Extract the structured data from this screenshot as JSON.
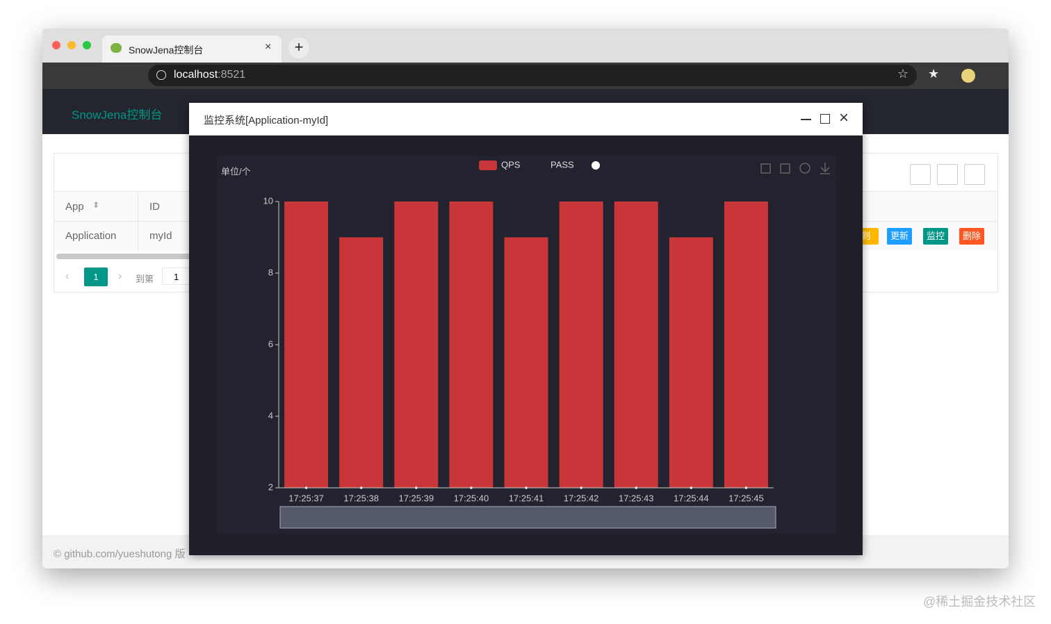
{
  "browser": {
    "tab_title": "SnowJena控制台",
    "url_host": "localhost",
    "url_port": ":8521"
  },
  "app": {
    "brand": "SnowJena控制台",
    "table": {
      "headers": [
        "App",
        "ID"
      ],
      "rows": [
        [
          "Application",
          "myId"
        ]
      ]
    },
    "pagination": {
      "page": "1",
      "goto_label": "到第",
      "goto_value": "1"
    },
    "row_actions": [
      "则",
      "更新",
      "监控",
      "删除"
    ],
    "footer": "© github.com/yueshutong 版"
  },
  "modal": {
    "title": "监控系统[Application-myId]"
  },
  "chart_data": {
    "type": "bar",
    "y_label": "单位/个",
    "categories": [
      "17:25:37",
      "17:25:38",
      "17:25:39",
      "17:25:40",
      "17:25:41",
      "17:25:42",
      "17:25:43",
      "17:25:44",
      "17:25:45"
    ],
    "series": [
      {
        "name": "QPS",
        "color": "#c9363a",
        "values": [
          10,
          9,
          10,
          10,
          9,
          10,
          10,
          9,
          10
        ]
      },
      {
        "name": "PASS",
        "color": "#ffffff",
        "type": "scatter",
        "values": [
          2,
          2,
          2,
          2,
          2,
          2,
          2,
          2,
          2
        ]
      }
    ],
    "ylim": [
      2,
      10
    ],
    "yticks": [
      2,
      4,
      6,
      8,
      10
    ]
  },
  "watermark": "@稀土掘金技术社区"
}
